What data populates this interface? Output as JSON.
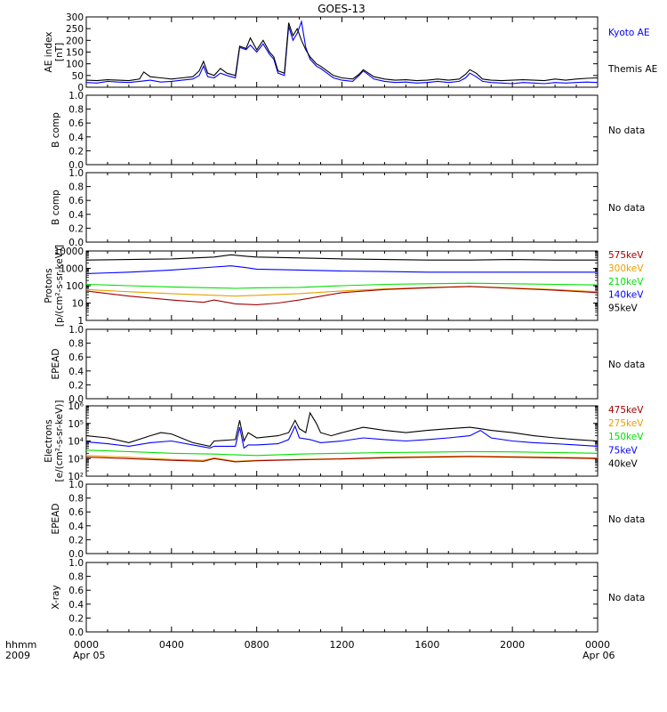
{
  "title": "GOES-13",
  "colors": {
    "black": "#000000",
    "blue": "#0000ff",
    "orange": "#e6a000",
    "green": "#00e000",
    "darkred": "#a00000",
    "frame": "#000000"
  },
  "footer": {
    "left_line1": "hhmm",
    "left_line2": "2009",
    "date_start": "Apr 05",
    "date_end": "Apr 06"
  },
  "chart_data": [
    {
      "type": "line",
      "ylabel": [
        "AE index",
        "[nT]"
      ],
      "ylim": [
        0,
        300
      ],
      "ytick_values": [
        0,
        50,
        100,
        150,
        200,
        250,
        300
      ],
      "ytick_labels": [
        "0",
        "50",
        "100",
        "150",
        "200",
        "250",
        "300"
      ],
      "xlim": [
        0,
        24
      ],
      "xtick_values": [
        0,
        4,
        8,
        12,
        16,
        20,
        24
      ],
      "xtick_labels": [
        "0000",
        "0400",
        "0800",
        "1200",
        "1600",
        "2000",
        "0000"
      ],
      "series": [
        {
          "name": "Kyoto AE",
          "color": "blue",
          "x": [
            0,
            0.5,
            1,
            1.5,
            2,
            2.5,
            3,
            3.5,
            4,
            4.5,
            5,
            5.3,
            5.5,
            5.7,
            6,
            6.3,
            6.6,
            7,
            7.2,
            7.5,
            7.7,
            8,
            8.3,
            8.6,
            8.8,
            9,
            9.3,
            9.5,
            9.7,
            9.9,
            10.1,
            10.3,
            10.5,
            10.8,
            11,
            11.3,
            11.6,
            12,
            12.5,
            12.8,
            13,
            13.5,
            14,
            14.5,
            15,
            15.5,
            16,
            16.5,
            17,
            17.5,
            17.8,
            18,
            18.3,
            18.6,
            19,
            19.5,
            20,
            20.5,
            21,
            21.5,
            22,
            22.5,
            23,
            23.5,
            24
          ],
          "y": [
            20,
            18,
            25,
            22,
            20,
            25,
            30,
            22,
            25,
            30,
            35,
            50,
            90,
            45,
            40,
            60,
            50,
            40,
            170,
            160,
            180,
            150,
            185,
            140,
            120,
            60,
            50,
            260,
            200,
            230,
            280,
            170,
            120,
            90,
            80,
            60,
            40,
            30,
            25,
            50,
            70,
            35,
            25,
            20,
            22,
            18,
            20,
            25,
            20,
            25,
            40,
            60,
            45,
            25,
            20,
            18,
            15,
            20,
            18,
            15,
            20,
            18,
            20,
            22,
            20
          ]
        },
        {
          "name": "Themis AE",
          "color": "black",
          "x": [
            0,
            0.5,
            1,
            1.5,
            2,
            2.5,
            2.7,
            3,
            3.5,
            4,
            4.5,
            5,
            5.3,
            5.5,
            5.7,
            6,
            6.3,
            6.6,
            7,
            7.2,
            7.5,
            7.7,
            8,
            8.3,
            8.6,
            8.8,
            9,
            9.3,
            9.5,
            9.7,
            9.9,
            10.1,
            10.3,
            10.5,
            10.8,
            11,
            11.3,
            11.6,
            12,
            12.5,
            12.8,
            13,
            13.5,
            14,
            14.5,
            15,
            15.5,
            16,
            16.5,
            17,
            17.5,
            17.8,
            18,
            18.3,
            18.6,
            19,
            19.5,
            20,
            20.5,
            21,
            21.5,
            22,
            22.5,
            23,
            23.5,
            24
          ],
          "y": [
            30,
            28,
            32,
            30,
            28,
            35,
            65,
            45,
            40,
            35,
            40,
            45,
            70,
            110,
            60,
            50,
            80,
            60,
            50,
            175,
            165,
            210,
            160,
            200,
            150,
            130,
            70,
            60,
            275,
            220,
            250,
            200,
            160,
            130,
            100,
            90,
            70,
            50,
            40,
            35,
            55,
            75,
            45,
            35,
            30,
            32,
            28,
            30,
            35,
            30,
            35,
            55,
            75,
            60,
            35,
            30,
            28,
            30,
            32,
            30,
            28,
            35,
            30,
            35,
            38,
            40
          ]
        }
      ],
      "legend": [
        {
          "label": "Kyoto AE",
          "color": "blue"
        },
        {
          "label": "Themis AE",
          "color": "black"
        }
      ]
    },
    {
      "type": "line",
      "ylabel": [
        "B comp"
      ],
      "ylim": [
        0,
        1
      ],
      "ytick_values": [
        0,
        0.2,
        0.4,
        0.6,
        0.8,
        1.0
      ],
      "ytick_labels": [
        "0.0",
        "0.2",
        "0.4",
        "0.6",
        "0.8",
        "1.0"
      ],
      "series": [],
      "legend": [
        {
          "label": "No data",
          "color": "black"
        }
      ]
    },
    {
      "type": "line",
      "ylabel": [
        "B comp"
      ],
      "ylim": [
        0,
        1
      ],
      "ytick_values": [
        0,
        0.2,
        0.4,
        0.6,
        0.8,
        1.0
      ],
      "ytick_labels": [
        "0.0",
        "0.2",
        "0.4",
        "0.6",
        "0.8",
        "1.0"
      ],
      "series": [],
      "legend": [
        {
          "label": "No data",
          "color": "black"
        }
      ]
    },
    {
      "type": "line",
      "log": true,
      "ylabel": [
        "Protons",
        "[p/(cm²-s-sr-keV)]"
      ],
      "ylim": [
        1,
        10000
      ],
      "ytick_values": [
        1,
        10,
        100,
        1000,
        10000
      ],
      "ytick_labels": [
        "1",
        "10",
        "100",
        "1000",
        "10000"
      ],
      "series": [
        {
          "name": "95keV",
          "color": "black",
          "x": [
            0,
            2,
            4,
            6,
            6.8,
            7.5,
            8,
            10,
            12,
            14,
            16,
            18,
            20,
            22,
            24
          ],
          "y": [
            3000,
            3200,
            3500,
            4500,
            6000,
            5000,
            4500,
            4000,
            3500,
            3200,
            3000,
            3000,
            3200,
            3000,
            3000
          ]
        },
        {
          "name": "140keV",
          "color": "blue",
          "x": [
            0,
            2,
            4,
            6,
            6.8,
            7.5,
            8,
            10,
            12,
            14,
            16,
            18,
            20,
            22,
            24
          ],
          "y": [
            500,
            600,
            800,
            1200,
            1400,
            1100,
            900,
            800,
            700,
            650,
            600,
            600,
            600,
            600,
            600
          ]
        },
        {
          "name": "210keV",
          "color": "green",
          "x": [
            0,
            2,
            4,
            6,
            7,
            8,
            10,
            12,
            14,
            16,
            18,
            20,
            22,
            24
          ],
          "y": [
            120,
            100,
            85,
            75,
            70,
            75,
            80,
            100,
            120,
            130,
            140,
            130,
            120,
            110
          ]
        },
        {
          "name": "300keV",
          "color": "orange",
          "x": [
            0,
            2,
            4,
            6,
            7,
            8,
            10,
            12,
            14,
            16,
            18,
            20,
            22,
            24
          ],
          "y": [
            60,
            45,
            35,
            28,
            25,
            28,
            35,
            50,
            65,
            80,
            90,
            75,
            60,
            45
          ]
        },
        {
          "name": "575keV",
          "color": "darkred",
          "x": [
            0,
            2,
            4,
            5.5,
            6,
            7,
            8,
            9,
            10,
            12,
            14,
            16,
            18,
            20,
            22,
            24
          ],
          "y": [
            50,
            25,
            15,
            11,
            15,
            9,
            8,
            10,
            15,
            40,
            60,
            75,
            90,
            70,
            55,
            40
          ]
        }
      ],
      "legend": [
        {
          "label": "575keV",
          "color": "darkred"
        },
        {
          "label": "300keV",
          "color": "orange"
        },
        {
          "label": "210keV",
          "color": "green"
        },
        {
          "label": "140keV",
          "color": "blue"
        },
        {
          "label": "95keV",
          "color": "black"
        }
      ]
    },
    {
      "type": "line",
      "ylabel": [
        "EPEAD"
      ],
      "ylim": [
        0,
        1
      ],
      "ytick_values": [
        0,
        0.2,
        0.4,
        0.6,
        0.8,
        1.0
      ],
      "ytick_labels": [
        "0.0",
        "0.2",
        "0.4",
        "0.6",
        "0.8",
        "1.0"
      ],
      "series": [],
      "legend": [
        {
          "label": "No data",
          "color": "black"
        }
      ]
    },
    {
      "type": "line",
      "log": true,
      "ylabel": [
        "Electrons",
        "[e/(cm²-s-sr-keV)]"
      ],
      "ylim": [
        100,
        1000000
      ],
      "ytick_values": [
        100,
        1000,
        10000,
        100000,
        1000000
      ],
      "ytick_labels": [
        "10²",
        "10³",
        "10⁴",
        "10⁵",
        "10⁶"
      ],
      "series": [
        {
          "name": "40keV",
          "color": "black",
          "x": [
            0,
            1,
            2,
            3,
            3.5,
            4,
            5,
            5.8,
            6,
            7,
            7.2,
            7.4,
            7.6,
            8,
            9,
            9.5,
            9.8,
            10,
            10.3,
            10.5,
            10.8,
            11,
            11.5,
            12,
            13,
            14,
            15,
            16,
            17,
            18,
            18.5,
            19,
            20,
            21,
            22,
            23,
            24
          ],
          "y": [
            20000,
            15000,
            8000,
            20000,
            30000,
            25000,
            8000,
            5000,
            10000,
            12000,
            150000,
            10000,
            30000,
            15000,
            20000,
            30000,
            150000,
            50000,
            30000,
            400000,
            100000,
            30000,
            20000,
            30000,
            60000,
            40000,
            30000,
            40000,
            50000,
            60000,
            50000,
            40000,
            30000,
            20000,
            15000,
            12000,
            10000
          ]
        },
        {
          "name": "75keV",
          "color": "blue",
          "x": [
            0,
            1,
            2,
            3,
            4,
            5,
            5.8,
            6,
            7,
            7.2,
            7.4,
            7.6,
            8,
            9,
            9.5,
            9.8,
            10,
            10.5,
            11,
            12,
            13,
            14,
            15,
            16,
            17,
            18,
            18.5,
            19,
            20,
            21,
            22,
            23,
            24
          ],
          "y": [
            9000,
            7000,
            5000,
            8000,
            10000,
            6000,
            4000,
            5000,
            5000,
            60000,
            4000,
            6000,
            6000,
            7000,
            12000,
            70000,
            15000,
            12000,
            8000,
            10000,
            15000,
            12000,
            10000,
            12000,
            15000,
            20000,
            40000,
            15000,
            10000,
            8000,
            7000,
            6000,
            5000
          ]
        },
        {
          "name": "150keV",
          "color": "green",
          "x": [
            0,
            2,
            4,
            6,
            8,
            10,
            12,
            14,
            16,
            18,
            20,
            22,
            24
          ],
          "y": [
            3000,
            2500,
            2000,
            1800,
            1500,
            1800,
            2000,
            2200,
            2300,
            2500,
            2400,
            2200,
            2000
          ]
        },
        {
          "name": "275keV",
          "color": "orange",
          "x": [
            0,
            2,
            4,
            5.5,
            6,
            7,
            8,
            10,
            12,
            14,
            16,
            18,
            20,
            22,
            24
          ],
          "y": [
            1500,
            1200,
            900,
            800,
            1100,
            700,
            800,
            900,
            1000,
            1200,
            1300,
            1400,
            1300,
            1200,
            1100
          ]
        },
        {
          "name": "475keV",
          "color": "darkred",
          "x": [
            0,
            2,
            4,
            5.5,
            6,
            7,
            8,
            10,
            12,
            14,
            16,
            18,
            20,
            22,
            24
          ],
          "y": [
            1200,
            1000,
            800,
            700,
            1000,
            650,
            750,
            850,
            950,
            1100,
            1200,
            1300,
            1200,
            1100,
            1000
          ]
        }
      ],
      "legend": [
        {
          "label": "475keV",
          "color": "darkred"
        },
        {
          "label": "275keV",
          "color": "orange"
        },
        {
          "label": "150keV",
          "color": "green"
        },
        {
          "label": "75keV",
          "color": "blue"
        },
        {
          "label": "40keV",
          "color": "black"
        }
      ]
    },
    {
      "type": "line",
      "ylabel": [
        "EPEAD"
      ],
      "ylim": [
        0,
        1
      ],
      "ytick_values": [
        0,
        0.2,
        0.4,
        0.6,
        0.8,
        1.0
      ],
      "ytick_labels": [
        "0.0",
        "0.2",
        "0.4",
        "0.6",
        "0.8",
        "1.0"
      ],
      "series": [],
      "legend": [
        {
          "label": "No data",
          "color": "black"
        }
      ]
    },
    {
      "type": "line",
      "ylabel": [
        "X-ray"
      ],
      "ylim": [
        0,
        1
      ],
      "ytick_values": [
        0,
        0.2,
        0.4,
        0.6,
        0.8,
        1.0
      ],
      "ytick_labels": [
        "0.0",
        "0.2",
        "0.4",
        "0.6",
        "0.8",
        "1.0"
      ],
      "series": [],
      "legend": [
        {
          "label": "No data",
          "color": "black"
        }
      ]
    }
  ]
}
